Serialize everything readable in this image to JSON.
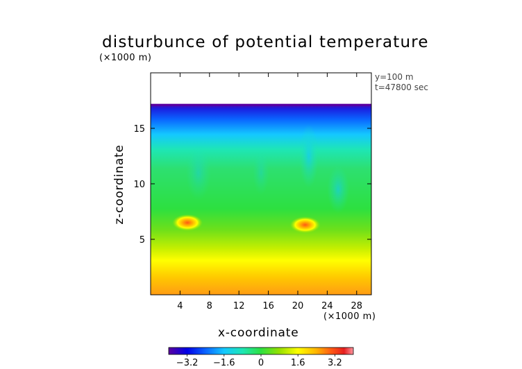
{
  "chart_data": {
    "type": "heatmap",
    "title": "disturbunce of potential temperature",
    "xlabel": "x-coordinate",
    "ylabel": "z-coordinate",
    "x_unit": "(×1000 m)",
    "y_unit": "(×1000 m)",
    "annotations": [
      "y=100 m",
      "t=47800 sec"
    ],
    "xlim": [
      0,
      30
    ],
    "ylim": [
      0,
      20
    ],
    "x_ticks": [
      4,
      8,
      12,
      16,
      20,
      24,
      28
    ],
    "y_ticks": [
      5,
      10,
      15
    ],
    "colorbar": {
      "min": -4,
      "max": 4,
      "ticks": [
        -3.2,
        -1.6,
        0,
        1.6,
        3.2
      ],
      "tick_labels": [
        "−3.2",
        "−1.6",
        "0",
        "1.6",
        "3.2"
      ]
    },
    "field_top_z": 17.2,
    "features": [
      {
        "name": "warm patch",
        "x": 5,
        "z": 6.5,
        "value": 2.4
      },
      {
        "name": "warm patch",
        "x": 21,
        "z": 6.3,
        "value": 2.6
      }
    ],
    "grid": false,
    "colormap": [
      "#5a00a0",
      "#0000e6",
      "#0a64ff",
      "#14c8ff",
      "#1ee6b4",
      "#2de040",
      "#96e000",
      "#ffff00",
      "#ffb400",
      "#ff5a14",
      "#e61e1e",
      "#ff96a0"
    ]
  }
}
